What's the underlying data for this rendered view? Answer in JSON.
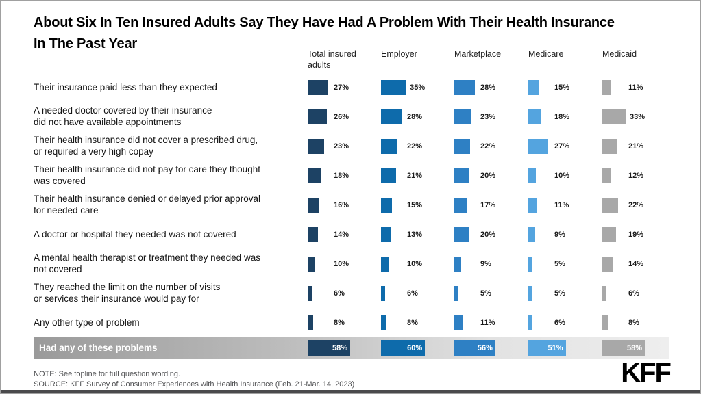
{
  "title": "About Six In Ten Insured Adults Say They Have Had A Problem With Their Health Insurance\nIn The Past Year",
  "logo": "KFF",
  "footer": {
    "note": "NOTE: See topline for full question wording.",
    "source": "SOURCE: KFF Survey of Consumer Experiences with Health Insurance (Feb. 21-Mar. 14, 2023)"
  },
  "colors": {
    "total_insured": "#1d4264",
    "employer": "#0e6bab",
    "marketplace": "#2e80c4",
    "medicare": "#54a4df",
    "medicaid": "#a8a8a8",
    "summary_band_left": "#9a9a9a",
    "summary_band_right": "#eeeeee"
  },
  "chart_data": {
    "type": "bar",
    "orientation": "horizontal",
    "value_suffix": "%",
    "xlim": [
      0,
      100
    ],
    "grid": false,
    "legend_position": "column-headers-top",
    "categories": [
      "Their insurance paid less than they expected",
      "A needed doctor covered by their insurance\ndid not have available appointments",
      "Their health insurance did not cover a prescribed drug,\nor required a very high copay",
      "Their health insurance did not pay for care they thought\nwas covered",
      "Their health insurance denied or delayed prior approval\nfor needed care",
      "A doctor or hospital they needed was not covered",
      "A mental health therapist or treatment they needed was\nnot covered",
      "They reached the limit on the number of visits\nor services their insurance would pay for",
      "Any other type of problem"
    ],
    "series": [
      {
        "name": "Total insured adults",
        "color": "#1d4264",
        "values": [
          27,
          26,
          23,
          18,
          16,
          14,
          10,
          6,
          8
        ]
      },
      {
        "name": "Employer",
        "color": "#0e6bab",
        "values": [
          35,
          28,
          22,
          21,
          15,
          13,
          10,
          6,
          8
        ]
      },
      {
        "name": "Marketplace",
        "color": "#2e80c4",
        "values": [
          28,
          23,
          22,
          20,
          17,
          20,
          9,
          5,
          11
        ]
      },
      {
        "name": "Medicare",
        "color": "#54a4df",
        "values": [
          15,
          18,
          27,
          10,
          11,
          9,
          5,
          5,
          6
        ]
      },
      {
        "name": "Medicaid",
        "color": "#a8a8a8",
        "values": [
          11,
          33,
          21,
          12,
          22,
          19,
          14,
          6,
          8
        ]
      }
    ],
    "summary": {
      "label": "Had any of these problems",
      "values": [
        58,
        60,
        56,
        51,
        58
      ]
    }
  }
}
